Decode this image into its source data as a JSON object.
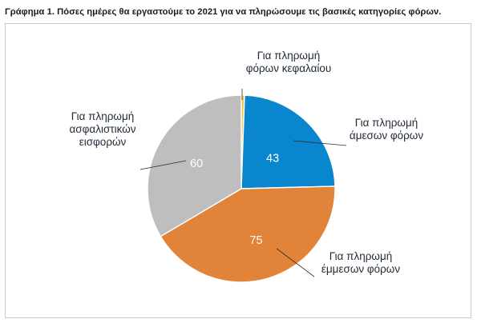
{
  "chart_data": {
    "type": "pie",
    "title": "Γράφημα 1. Πόσες ημέρες θα εργαστούμε το 2021 για να πληρώσουμε τις βασικές κατηγορίες φόρων.",
    "slices": [
      {
        "label": [
          "Για πληρωμή",
          "φόρων κεφαλαίου"
        ],
        "value": 1,
        "color": "#F2C744",
        "show_value": false
      },
      {
        "label": [
          "Για πληρωμή",
          "άμεσων φόρων"
        ],
        "value": 43,
        "color": "#0A86CF",
        "show_value": true
      },
      {
        "label": [
          "Για πληρωμή",
          "έμμεσων φόρων"
        ],
        "value": 75,
        "color": "#E1843A",
        "show_value": true
      },
      {
        "label": [
          "Για πληρωμή",
          "ασφαλιστικών",
          "εισφορών"
        ],
        "value": 60,
        "color": "#BEBEBE",
        "show_value": true
      }
    ],
    "start_angle_deg": 0,
    "direction": "clockwise",
    "legend": "none",
    "border_color": "#ffffff"
  }
}
